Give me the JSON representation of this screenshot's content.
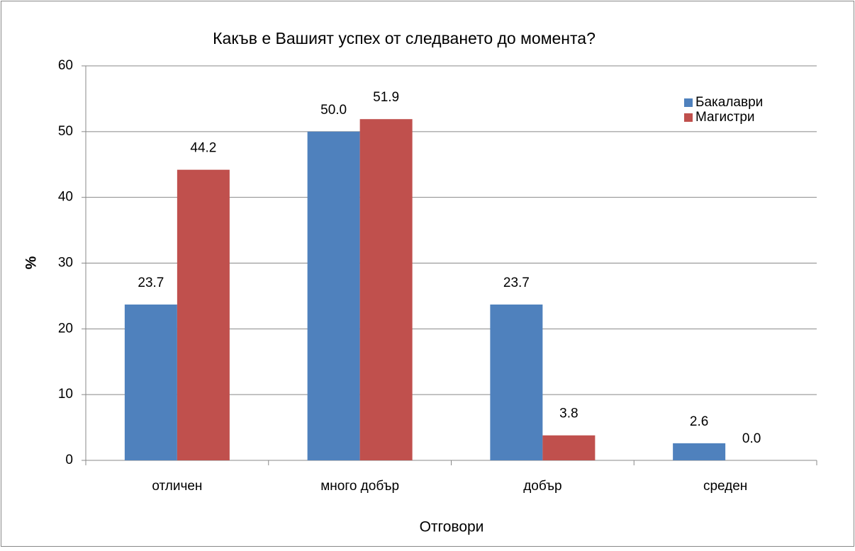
{
  "chart_data": {
    "type": "bar",
    "title": "Какъв е Вашият успех от следването до момента?",
    "x_label": "Отговори",
    "y_label": "%",
    "categories": [
      "отличен",
      "много добър",
      "добър",
      "среден"
    ],
    "series": [
      {
        "name": "Бакалаври",
        "color": "#4f81bd",
        "values": [
          23.7,
          50.0,
          23.7,
          2.6
        ],
        "value_labels": [
          "23.7",
          "50.0",
          "23.7",
          "2.6"
        ]
      },
      {
        "name": "Магистри",
        "color": "#c0504d",
        "values": [
          44.2,
          51.9,
          3.8,
          0.0
        ],
        "value_labels": [
          "44.2",
          "51.9",
          "3.8",
          "0.0"
        ]
      }
    ],
    "ylim": [
      0,
      60
    ],
    "yticks": [
      0,
      10,
      20,
      30,
      40,
      50,
      60
    ],
    "grid": true,
    "legend": "top-right"
  }
}
